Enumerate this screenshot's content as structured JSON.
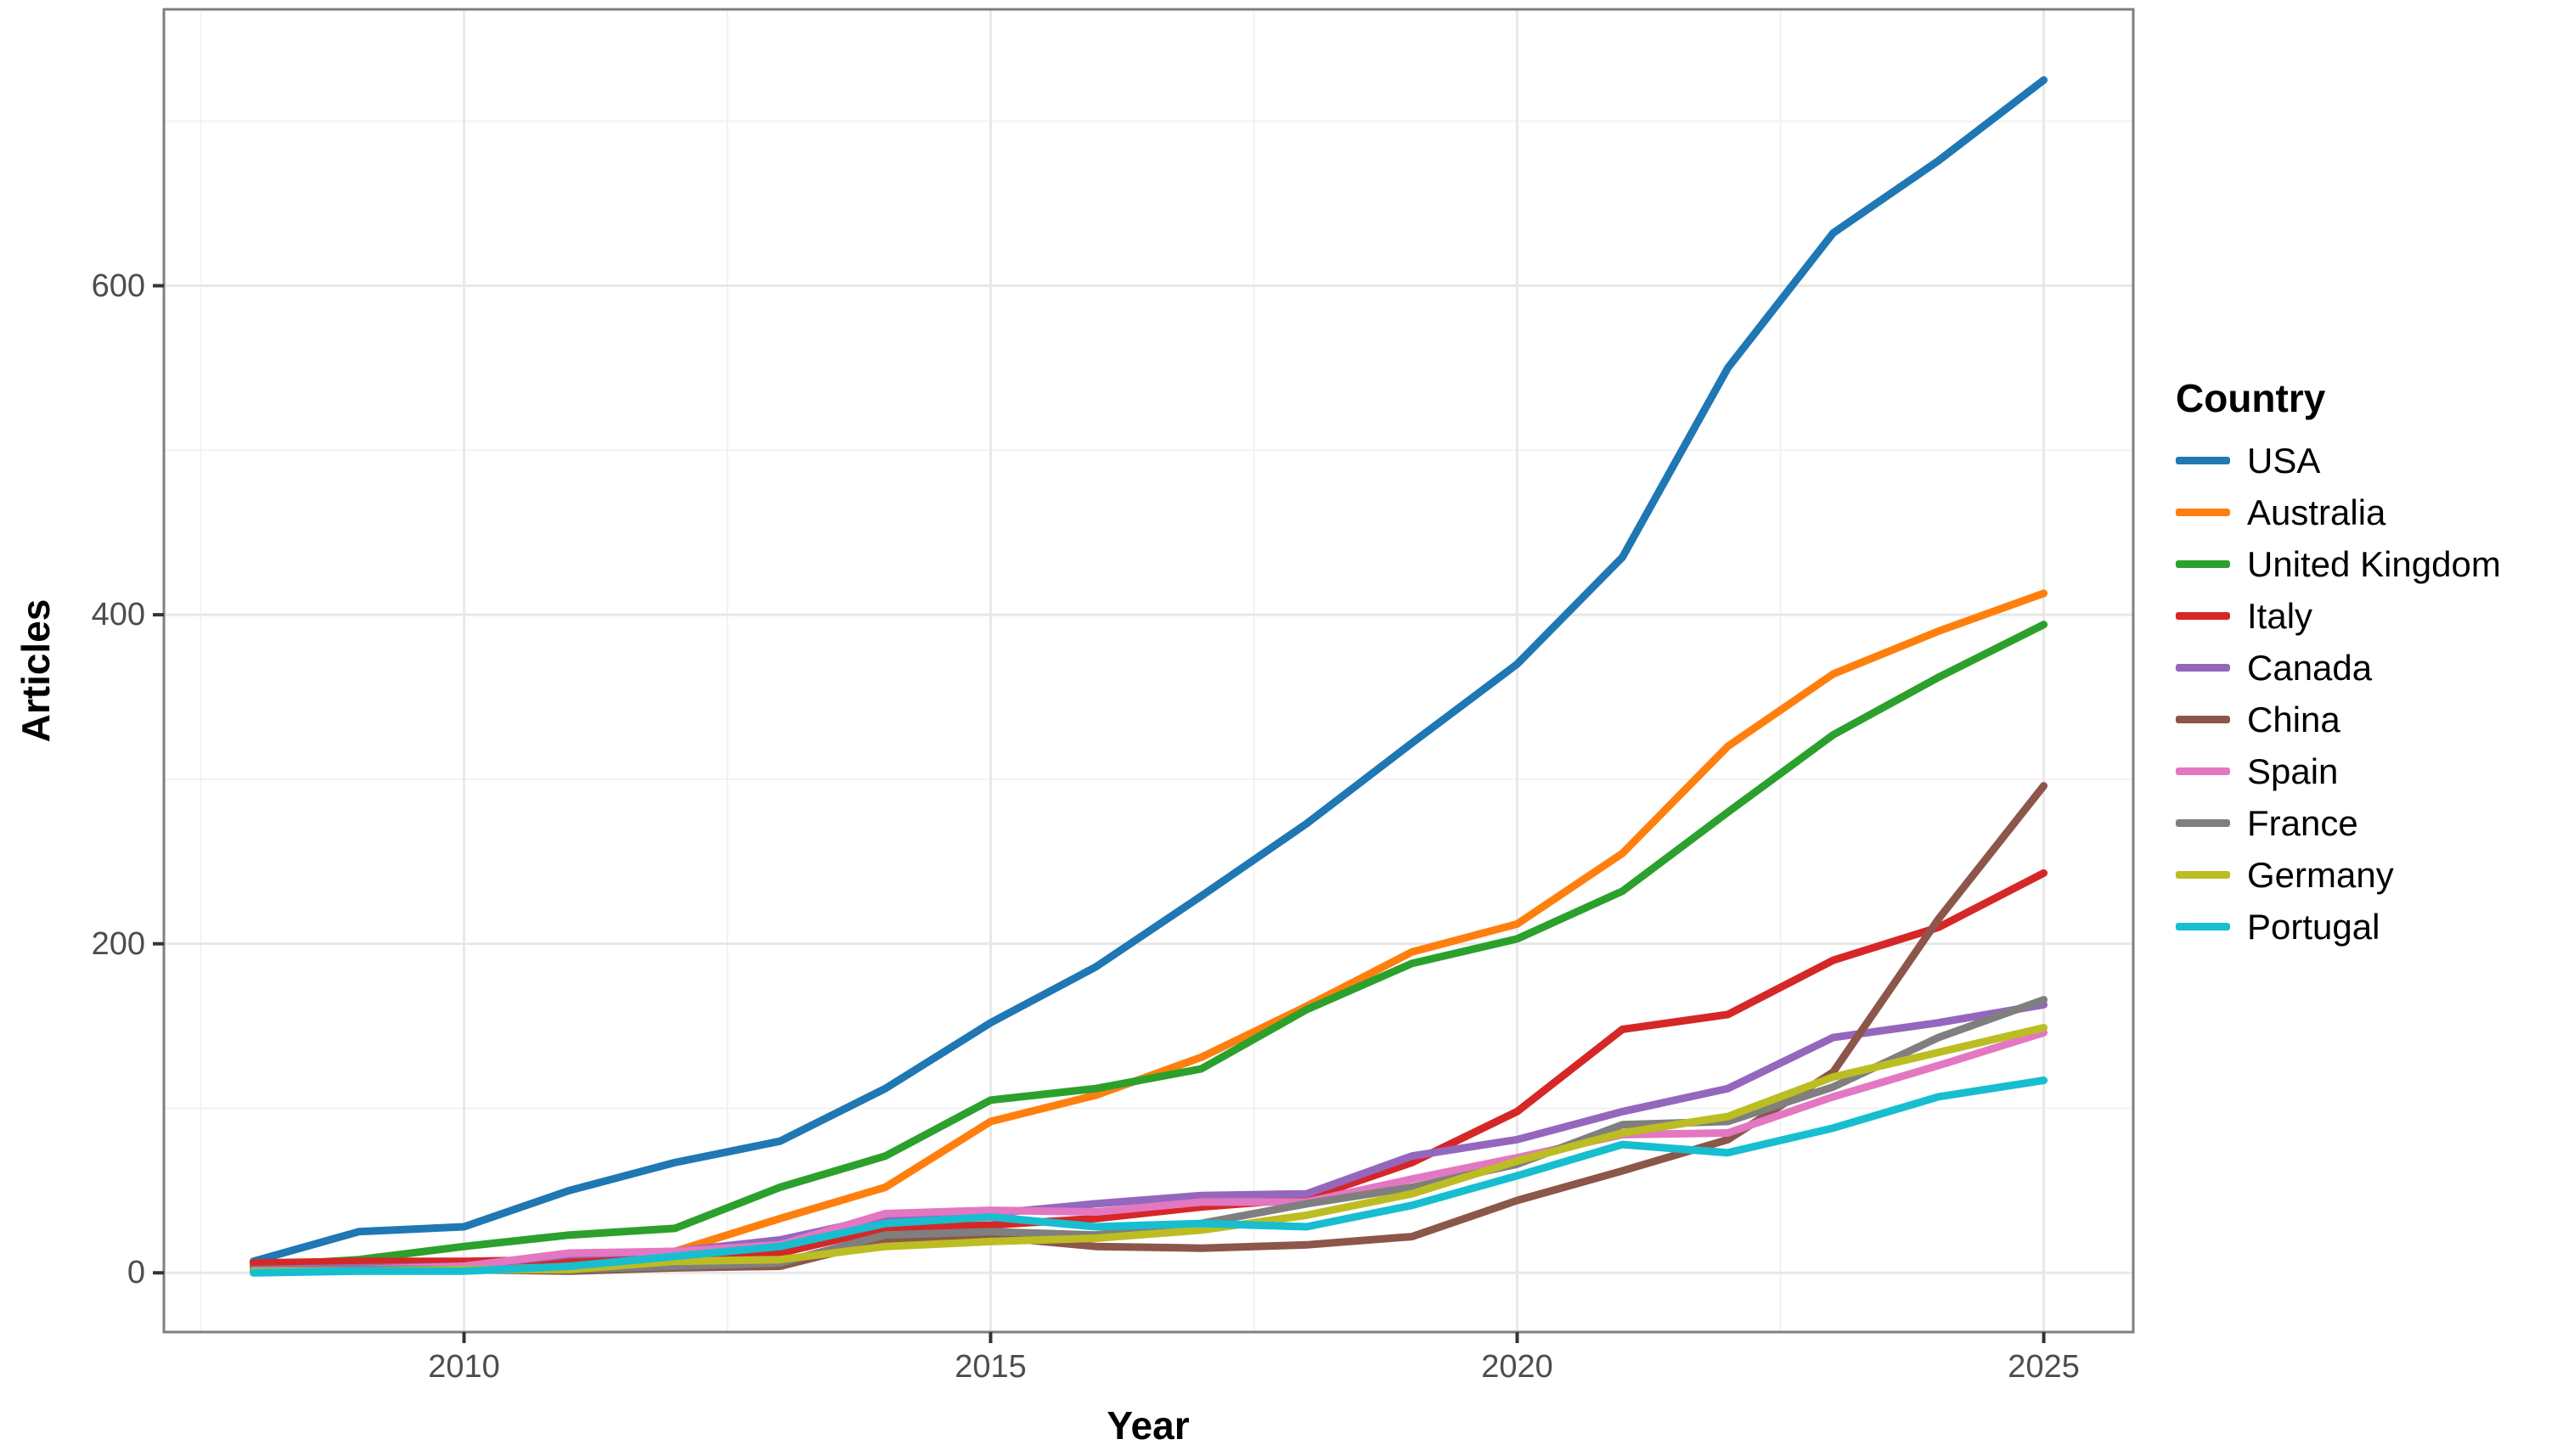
{
  "figure": {
    "xlabel": "Year",
    "ylabel": "Articles",
    "legend_title": "Country"
  },
  "chart_data": {
    "type": "line",
    "title": "",
    "xlabel": "Year",
    "ylabel": "Articles",
    "legend_title": "Country",
    "legend_position": "right",
    "grid": "major and minor, light gray on white, full panel border",
    "xlim": [
      2007.15,
      2025.85
    ],
    "ylim": [
      -36,
      768
    ],
    "x_ticks": [
      2010,
      2015,
      2020,
      2025
    ],
    "y_ticks": [
      0,
      200,
      400,
      600
    ],
    "x_minor_ticks": [
      2007.5,
      2012.5,
      2017.5,
      2022.5
    ],
    "y_minor_ticks": [
      100,
      300,
      500,
      700
    ],
    "x": [
      2008,
      2009,
      2010,
      2011,
      2012,
      2013,
      2014,
      2015,
      2016,
      2017,
      2018,
      2019,
      2020,
      2021,
      2022,
      2023,
      2024,
      2025
    ],
    "series": [
      {
        "name": "USA",
        "color": "#1f77b4",
        "values": [
          7,
          25,
          28,
          50,
          67,
          80,
          112,
          152,
          186,
          229,
          273,
          322,
          370,
          435,
          550,
          632,
          676,
          725
        ]
      },
      {
        "name": "Australia",
        "color": "#ff7f0e",
        "values": [
          2,
          3,
          5,
          9,
          13,
          33,
          52,
          92,
          108,
          131,
          162,
          195,
          212,
          255,
          320,
          364,
          390,
          413
        ]
      },
      {
        "name": "United Kingdom",
        "color": "#2ca02c",
        "values": [
          4,
          8,
          16,
          23,
          27,
          52,
          71,
          105,
          112,
          124,
          160,
          188,
          203,
          232,
          280,
          327,
          362,
          394
        ]
      },
      {
        "name": "Italy",
        "color": "#d62728",
        "values": [
          6,
          7,
          7,
          8,
          11,
          12,
          27,
          29,
          33,
          40,
          45,
          67,
          98,
          148,
          157,
          190,
          210,
          243
        ]
      },
      {
        "name": "Canada",
        "color": "#9467bd",
        "values": [
          2,
          3,
          4,
          11,
          13,
          20,
          34,
          36,
          42,
          47,
          48,
          71,
          81,
          98,
          112,
          143,
          152,
          163
        ]
      },
      {
        "name": "China",
        "color": "#8c564b",
        "values": [
          1,
          2,
          2,
          1,
          3,
          4,
          20,
          22,
          16,
          15,
          17,
          22,
          44,
          62,
          81,
          122,
          215,
          296
        ]
      },
      {
        "name": "Spain",
        "color": "#e377c2",
        "values": [
          1,
          2,
          4,
          12,
          13,
          17,
          36,
          38,
          37,
          43,
          43,
          57,
          70,
          84,
          85,
          107,
          126,
          146
        ]
      },
      {
        "name": "France",
        "color": "#7f7f7f",
        "values": [
          1,
          2,
          2,
          2,
          4,
          6,
          23,
          25,
          23,
          30,
          42,
          52,
          66,
          90,
          92,
          113,
          143,
          166
        ]
      },
      {
        "name": "Germany",
        "color": "#bcbd22",
        "values": [
          1,
          1,
          2,
          2,
          7,
          8,
          16,
          19,
          21,
          26,
          35,
          48,
          68,
          85,
          95,
          119,
          134,
          149
        ]
      },
      {
        "name": "Portugal",
        "color": "#17becf",
        "values": [
          0,
          1,
          1,
          4,
          10,
          16,
          30,
          34,
          28,
          30,
          28,
          41,
          59,
          78,
          73,
          88,
          107,
          117
        ]
      }
    ]
  },
  "style": {
    "grid_major_color": "#e8e8e8",
    "grid_minor_color": "#f2f2f2",
    "panel_border_color": "#7f7f7f",
    "tick_mark_color": "#333333",
    "tick_label_color": "#4d4d4d"
  }
}
